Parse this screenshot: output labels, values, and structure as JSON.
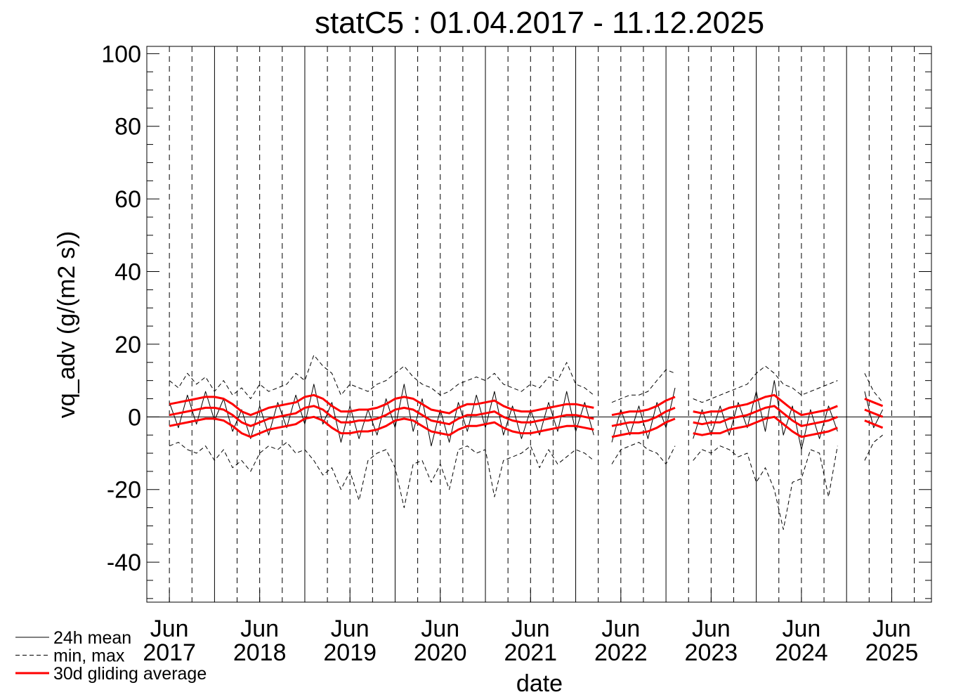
{
  "chart_data": {
    "type": "line",
    "title": "statC5 : 01.04.2017 - 11.12.2025",
    "x_label": "date",
    "y_label": "vq_adv (g/(m2 s))",
    "xlim": [
      2017.25,
      2025.94
    ],
    "ylim": [
      -51,
      102
    ],
    "yticks": [
      -40,
      -20,
      0,
      20,
      40,
      60,
      80,
      100
    ],
    "yminorticks": [
      -50,
      -45,
      -35,
      -30,
      -25,
      -15,
      -10,
      -5,
      5,
      10,
      15,
      25,
      30,
      35,
      45,
      50,
      55,
      65,
      70,
      75,
      85,
      90,
      95
    ],
    "xticks": [
      {
        "value": 2017.5,
        "label": "Jun 2017"
      },
      {
        "value": 2018.5,
        "label": "Jun 2018"
      },
      {
        "value": 2019.5,
        "label": "Jun 2019"
      },
      {
        "value": 2020.5,
        "label": "Jun 2020"
      },
      {
        "value": 2021.5,
        "label": "Jun 2021"
      },
      {
        "value": 2022.5,
        "label": "Jun 2022"
      },
      {
        "value": 2023.5,
        "label": "Jun 2023"
      },
      {
        "value": 2024.5,
        "label": "Jun 2024"
      },
      {
        "value": 2025.5,
        "label": "Jun 2025"
      }
    ],
    "x_grid_major": [
      2018,
      2019,
      2020,
      2021,
      2022,
      2023,
      2024,
      2025
    ],
    "x_grid_minor": [
      2017.5,
      2017.75,
      2018.25,
      2018.5,
      2018.75,
      2019.25,
      2019.5,
      2019.75,
      2020.25,
      2020.5,
      2020.75,
      2021.25,
      2021.5,
      2021.75,
      2022.25,
      2022.5,
      2022.75,
      2023.25,
      2023.5,
      2023.75,
      2024.25,
      2024.5,
      2024.75,
      2025.25,
      2025.5,
      2025.75
    ],
    "hline": 0,
    "x": [
      2017.5,
      2017.6,
      2017.7,
      2017.8,
      2017.9,
      2018.0,
      2018.1,
      2018.2,
      2018.3,
      2018.4,
      2018.5,
      2018.6,
      2018.7,
      2018.8,
      2018.9,
      2019.0,
      2019.1,
      2019.2,
      2019.3,
      2019.4,
      2019.5,
      2019.6,
      2019.7,
      2019.8,
      2019.9,
      2020.0,
      2020.1,
      2020.2,
      2020.3,
      2020.4,
      2020.5,
      2020.6,
      2020.7,
      2020.8,
      2020.9,
      2021.0,
      2021.1,
      2021.2,
      2021.3,
      2021.4,
      2021.5,
      2021.6,
      2021.7,
      2021.8,
      2021.9,
      2022.0,
      2022.1,
      2022.2,
      2022.3,
      2022.4,
      2022.5,
      2022.6,
      2022.7,
      2022.8,
      2022.9,
      2023.0,
      2023.1,
      2023.2,
      2023.3,
      2023.4,
      2023.5,
      2023.6,
      2023.7,
      2023.8,
      2023.9,
      2024.0,
      2024.1,
      2024.2,
      2024.3,
      2024.4,
      2024.5,
      2024.6,
      2024.7,
      2024.8,
      2024.9,
      2025.0,
      2025.1,
      2025.2,
      2025.3,
      2025.4
    ],
    "series": [
      {
        "name": "24h mean",
        "color": "#000000",
        "style": "solid",
        "lines": [
          [
            4,
            -3,
            6,
            -2,
            7,
            -1,
            5,
            -4,
            2,
            -6,
            3,
            -5,
            4,
            -3,
            6,
            -2,
            9,
            -2,
            4,
            -7,
            3,
            -6,
            2,
            -5,
            5,
            -3,
            9,
            -4,
            5,
            -8,
            2,
            -7,
            4,
            -4,
            6,
            -3,
            7,
            -5,
            3,
            -6,
            2,
            -5,
            4,
            -4,
            7,
            -4,
            4,
            -5,
            null,
            -7,
            2,
            -5,
            3,
            -6,
            4,
            -3,
            8,
            null,
            -6,
            2,
            -5,
            3,
            -5,
            4,
            -3,
            7,
            -4,
            10,
            -5,
            3,
            -9,
            2,
            -6,
            3,
            -4,
            null,
            null,
            7,
            -3,
            2
          ]
        ]
      },
      {
        "name": "min, max",
        "color": "#000000",
        "style": "dashed",
        "lines": [
          [
            -8,
            -7,
            -9,
            -10,
            -8,
            -12,
            -9,
            -14,
            -12,
            -15,
            -10,
            -8,
            -9,
            -7,
            -10,
            -9,
            -12,
            -16,
            -14,
            -20,
            -15,
            -23,
            -12,
            -10,
            -9,
            -14,
            -25,
            -13,
            -12,
            -18,
            -13,
            -20,
            -9,
            -8,
            -10,
            -9,
            -22,
            -12,
            -11,
            -10,
            -8,
            -14,
            -9,
            -13,
            -11,
            -9,
            -10,
            -12,
            null,
            -13,
            -9,
            -8,
            -7,
            -9,
            -10,
            -13,
            -8,
            null,
            -12,
            -9,
            -10,
            -8,
            -9,
            -11,
            -10,
            -18,
            -14,
            -20,
            -31,
            -18,
            -17,
            -9,
            -10,
            -22,
            -8,
            null,
            null,
            -12,
            -7,
            -5
          ],
          [
            10,
            8,
            12,
            9,
            11,
            7,
            10,
            6,
            8,
            5,
            9,
            7,
            8,
            9,
            12,
            10,
            17,
            14,
            12,
            6,
            9,
            8,
            7,
            9,
            10,
            12,
            14,
            11,
            9,
            8,
            6,
            7,
            9,
            10,
            11,
            10,
            12,
            9,
            8,
            7,
            9,
            8,
            11,
            10,
            15,
            9,
            8,
            6,
            null,
            4,
            5,
            6,
            6,
            7,
            10,
            13,
            12,
            null,
            5,
            4,
            5,
            6,
            7,
            8,
            9,
            12,
            14,
            12,
            9,
            8,
            6,
            7,
            8,
            9,
            10,
            null,
            null,
            12,
            7,
            4
          ]
        ]
      },
      {
        "name": "30d gliding average",
        "color": "#ff0000",
        "style": "thick",
        "lines": [
          [
            0.5,
            1,
            1.5,
            2,
            2.5,
            2.5,
            2,
            0.5,
            -1.5,
            -2.5,
            -1.5,
            -0.5,
            0,
            0.5,
            1,
            2.5,
            3,
            2,
            0,
            -1.5,
            -1.5,
            -1,
            -1,
            -0.5,
            0.5,
            2,
            2.5,
            2,
            0.5,
            -1,
            -1.5,
            -2,
            -0.5,
            0.5,
            0.5,
            1,
            1.5,
            0,
            -1,
            -1.5,
            -1.5,
            -1,
            -0.5,
            0,
            0.5,
            0.5,
            0,
            -0.5,
            null,
            -2.5,
            -2,
            -1.5,
            -1.5,
            -1,
            0,
            1.5,
            2.5,
            null,
            -1.5,
            -2,
            -1.5,
            -1.5,
            -0.5,
            0,
            0.5,
            1.5,
            2.5,
            3,
            1,
            -1,
            -2.5,
            -2,
            -1.5,
            -1,
            0,
            null,
            null,
            2,
            1,
            0
          ],
          [
            3.5,
            4,
            4.5,
            5,
            5.5,
            5.5,
            5,
            3.5,
            1.5,
            0.5,
            1.5,
            2.5,
            3,
            3.5,
            4,
            5.5,
            6,
            5,
            3,
            1.5,
            1.5,
            2,
            2,
            2.5,
            3.5,
            5,
            5.5,
            5,
            3.5,
            2,
            1.5,
            1,
            2.5,
            3.5,
            3.5,
            4,
            4.5,
            3,
            2,
            1.5,
            1.5,
            2,
            2.5,
            3,
            3.5,
            3.5,
            3,
            2.5,
            null,
            0.5,
            1,
            1.5,
            1.5,
            2,
            3,
            4.5,
            5.5,
            null,
            1.5,
            1,
            1.5,
            1.5,
            2.5,
            3,
            3.5,
            4.5,
            5.5,
            6,
            4,
            2,
            0.5,
            1,
            1.5,
            2,
            3,
            null,
            null,
            5,
            4,
            3
          ],
          [
            -2.5,
            -2,
            -1.5,
            -1,
            -0.5,
            -0.5,
            -1,
            -2.5,
            -4.5,
            -5.5,
            -4.5,
            -3.5,
            -3,
            -2.5,
            -2,
            -0.5,
            0,
            -1,
            -3,
            -4.5,
            -4.5,
            -4,
            -4,
            -3.5,
            -2.5,
            -1,
            -0.5,
            -1,
            -2.5,
            -4,
            -4.5,
            -5,
            -3.5,
            -2.5,
            -2.5,
            -2,
            -1.5,
            -3,
            -4,
            -4.5,
            -4.5,
            -4,
            -3.5,
            -3,
            -2.5,
            -2.5,
            -3,
            -3.5,
            null,
            -5.5,
            -5,
            -4.5,
            -4.5,
            -4,
            -3,
            -1.5,
            -0.5,
            null,
            -4.5,
            -5,
            -4.5,
            -4.5,
            -3.5,
            -3,
            -2.5,
            -1.5,
            -0.5,
            0,
            -2,
            -4,
            -5.5,
            -5,
            -4.5,
            -4,
            -3,
            null,
            null,
            -1,
            -2,
            -3
          ]
        ]
      }
    ]
  }
}
